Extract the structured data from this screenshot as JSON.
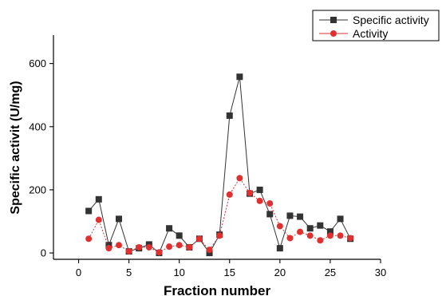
{
  "chart_data": {
    "type": "line",
    "xlabel": "Fraction number",
    "ylabel": "Specific activit (U/mg)",
    "xlim": [
      -2.5,
      30
    ],
    "ylim": [
      -20,
      690
    ],
    "xticks": [
      0,
      5,
      10,
      15,
      20,
      25,
      30
    ],
    "yticks": [
      0,
      200,
      400,
      600
    ],
    "grid": false,
    "legend_position": "top-right",
    "x": [
      1,
      2,
      3,
      4,
      5,
      6,
      7,
      8,
      9,
      10,
      11,
      12,
      13,
      14,
      15,
      16,
      17,
      18,
      19,
      20,
      21,
      22,
      23,
      24,
      25,
      26,
      27
    ],
    "series": [
      {
        "name": "Specific  activity",
        "color": "#333333",
        "marker": "square",
        "line_style": "solid",
        "values": [
          133,
          170,
          25,
          108,
          5,
          15,
          27,
          0,
          78,
          55,
          18,
          45,
          0,
          58,
          435,
          558,
          188,
          200,
          123,
          15,
          118,
          115,
          78,
          87,
          68,
          108,
          45
        ]
      },
      {
        "name": "Activity",
        "color": "#e03030",
        "marker": "circle",
        "line_style": "dotted",
        "values": [
          45,
          105,
          15,
          25,
          5,
          18,
          18,
          2,
          20,
          25,
          18,
          45,
          10,
          55,
          185,
          237,
          190,
          165,
          157,
          85,
          47,
          67,
          55,
          40,
          55,
          55,
          47
        ]
      }
    ]
  }
}
